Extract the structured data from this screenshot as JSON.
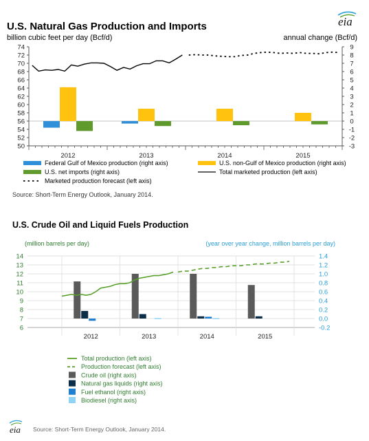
{
  "chart_data": [
    {
      "type": "bar",
      "title": "U.S. Natural Gas Production and Imports",
      "ylabel": "billion cubic feet per day (Bcf/d)",
      "y2label": "annual change (Bcf/d)",
      "ylim": [
        50,
        74
      ],
      "y2lim": [
        -3,
        9
      ],
      "yticks": [
        50,
        52,
        54,
        56,
        58,
        60,
        62,
        64,
        66,
        68,
        70,
        72,
        74
      ],
      "y2ticks": [
        -3,
        -2,
        -1,
        0,
        1,
        2,
        3,
        4,
        5,
        6,
        7,
        8,
        9
      ],
      "categories": [
        "2012",
        "2013",
        "2014",
        "2015"
      ],
      "bar_series": [
        {
          "name": "Federal Gulf of Mexico production (right axis)",
          "color": "#2f8fd8",
          "values": [
            -0.8,
            -0.3,
            0,
            0
          ]
        },
        {
          "name": "U.S. non-Gulf of Mexico production (right axis)",
          "color": "#ffc20e",
          "values": [
            4.1,
            1.5,
            1.5,
            1.0
          ]
        },
        {
          "name": "U.S. net imports (right axis)",
          "color": "#5f9a2c",
          "values": [
            -1.2,
            -0.6,
            -0.5,
            -0.4
          ]
        }
      ],
      "line_series": [
        {
          "name": "Total marketed production (left axis)",
          "color": "#000000",
          "style": "solid",
          "x": [
            2012.0,
            2012.083,
            2012.167,
            2012.25,
            2012.333,
            2012.417,
            2012.5,
            2012.583,
            2012.667,
            2012.75,
            2012.833,
            2012.917,
            2013.0,
            2013.083,
            2013.167,
            2013.25,
            2013.333,
            2013.417,
            2013.5,
            2013.583,
            2013.667,
            2013.75,
            2013.833,
            2013.917
          ],
          "y": [
            69.5,
            68.1,
            68.4,
            68.3,
            68.5,
            68.1,
            69.6,
            69.3,
            69.8,
            70.1,
            70.1,
            70.0,
            69.2,
            68.3,
            69.0,
            68.6,
            69.4,
            69.9,
            69.9,
            70.6,
            70.6,
            70.1,
            71.0,
            72.0
          ]
        },
        {
          "name": "Marketed production forecast (left axis)",
          "color": "#000000",
          "style": "dotted",
          "x": [
            2014.0,
            2014.083,
            2014.167,
            2014.25,
            2014.333,
            2014.417,
            2014.5,
            2014.583,
            2014.667,
            2014.75,
            2014.833,
            2014.917,
            2015.0,
            2015.083,
            2015.167,
            2015.25,
            2015.333,
            2015.417,
            2015.5,
            2015.583,
            2015.667,
            2015.75,
            2015.833,
            2015.917
          ],
          "y": [
            72.0,
            72.1,
            72.0,
            72.0,
            71.8,
            71.7,
            71.6,
            71.6,
            71.9,
            72.0,
            72.4,
            72.6,
            72.7,
            72.6,
            72.4,
            72.5,
            72.4,
            72.6,
            72.4,
            72.4,
            72.3,
            72.6,
            72.7,
            72.6
          ]
        }
      ],
      "legend": [
        "Federal Gulf of Mexico production (right axis)",
        "U.S. non-Gulf of Mexico production (right axis)",
        "U.S. net imports (right axis)",
        "Total marketed production (left axis)",
        "Marketed production forecast (left axis)"
      ],
      "source": "Source: Short-Term Energy Outlook, January 2014."
    },
    {
      "type": "bar",
      "title": "U.S. Crude Oil and Liquid Fuels Production",
      "ylabel": "(million barrels per day)",
      "y2label": "(year over year change, million barrels per day)",
      "ylim": [
        6,
        14
      ],
      "y2lim": [
        -0.2,
        1.4
      ],
      "yticks": [
        6,
        7,
        8,
        9,
        10,
        11,
        12,
        13,
        14
      ],
      "y2ticks": [
        "-0.2",
        "0.0",
        "0.2",
        "0.4",
        "0.6",
        "0.8",
        "1.0",
        "1.2",
        "1.4"
      ],
      "categories": [
        "2012",
        "2013",
        "2014",
        "2015"
      ],
      "bar_series": [
        {
          "name": "Crude oil (right axis)",
          "color": "#5a5a5a",
          "values": [
            0.83,
            1.0,
            1.0,
            0.75
          ]
        },
        {
          "name": "Natural gas liquids (right axis)",
          "color": "#0c2d48",
          "values": [
            0.17,
            0.1,
            0.05,
            0.05
          ]
        },
        {
          "name": "Fuel ethanol (right axis)",
          "color": "#1f7fd0",
          "values": [
            -0.05,
            0,
            0.04,
            0
          ]
        },
        {
          "name": "Biodiesel (right axis)",
          "color": "#8fd4f5",
          "values": [
            0,
            0.01,
            0.01,
            0
          ]
        }
      ],
      "line_series": [
        {
          "name": "Total production (left axis)",
          "color": "#5aa02c",
          "style": "solid",
          "x": [
            2012.0,
            2012.083,
            2012.167,
            2012.25,
            2012.333,
            2012.417,
            2012.5,
            2012.583,
            2012.667,
            2012.75,
            2012.833,
            2012.917,
            2013.0,
            2013.083,
            2013.167,
            2013.25,
            2013.333,
            2013.417,
            2013.5,
            2013.583,
            2013.667,
            2013.75,
            2013.833,
            2013.917
          ],
          "y": [
            9.5,
            9.6,
            9.7,
            9.6,
            9.7,
            9.6,
            9.7,
            10.0,
            10.4,
            10.5,
            10.6,
            10.8,
            10.9,
            10.9,
            11.0,
            11.3,
            11.5,
            11.6,
            11.7,
            11.8,
            11.8,
            11.9,
            12.0,
            12.2
          ]
        },
        {
          "name": "Production forecast (left axis)",
          "color": "#5aa02c",
          "style": "dashed",
          "x": [
            2014.0,
            2014.083,
            2014.167,
            2014.25,
            2014.333,
            2014.417,
            2014.5,
            2014.583,
            2014.667,
            2014.75,
            2014.833,
            2014.917,
            2015.0,
            2015.083,
            2015.167,
            2015.25,
            2015.333,
            2015.417,
            2015.5,
            2015.583,
            2015.667,
            2015.75,
            2015.833,
            2015.917
          ],
          "y": [
            12.2,
            12.3,
            12.3,
            12.4,
            12.5,
            12.6,
            12.6,
            12.7,
            12.7,
            12.8,
            12.8,
            12.9,
            12.9,
            12.9,
            13.0,
            13.0,
            13.1,
            13.1,
            13.1,
            13.2,
            13.2,
            13.3,
            13.3,
            13.4
          ]
        }
      ],
      "legend": [
        "Total production (left axis)",
        "Production forecast (left axis)",
        "Crude oil (right axis)",
        "Natural gas liquids (right axis)",
        "Fuel ethanol (right axis)",
        "Biodiesel (right axis)"
      ],
      "source": "Source: Short-Term Energy Outlook, January 2014."
    }
  ],
  "logo": {
    "text": "eia"
  }
}
